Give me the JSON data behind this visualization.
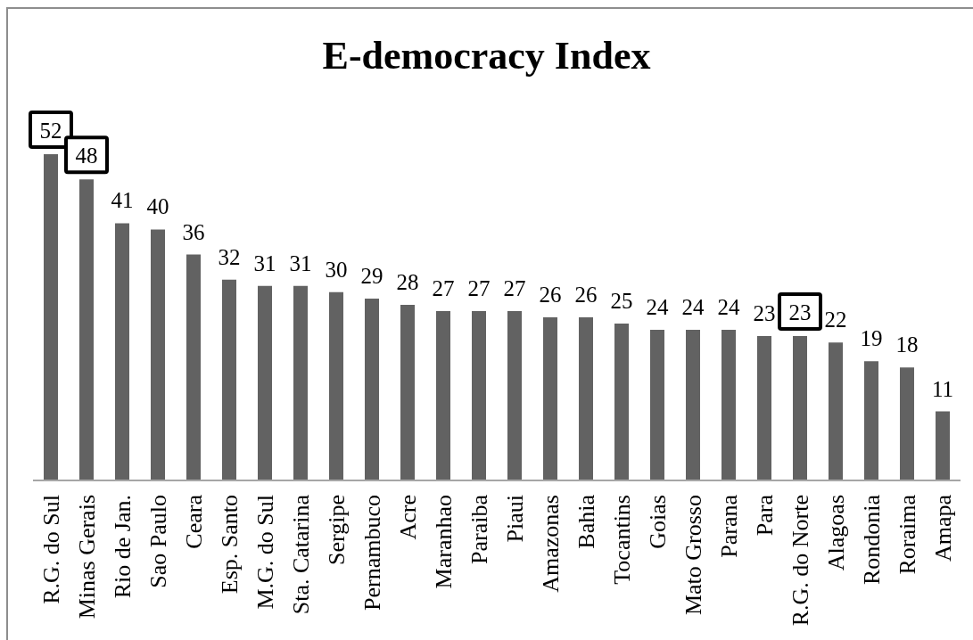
{
  "chart_data": {
    "type": "bar",
    "title": "E-democracy Index",
    "categories": [
      "R.G. do Sul",
      "Minas Gerais",
      "Rio de Jan.",
      "Sao Paulo",
      "Ceara",
      "Esp. Santo",
      "M.G. do Sul",
      "Sta. Catarina",
      "Sergipe",
      "Pernambuco",
      "Acre",
      "Maranhao",
      "Paraiba",
      "Piaui",
      "Amazonas",
      "Bahia",
      "Tocantins",
      "Goias",
      "Mato Grosso",
      "Parana",
      "Para",
      "R.G. do Norte",
      "Alagoas",
      "Rondonia",
      "Roraima",
      "Amapa"
    ],
    "values": [
      52,
      48,
      41,
      40,
      36,
      32,
      31,
      31,
      30,
      29,
      28,
      27,
      27,
      27,
      26,
      26,
      25,
      24,
      24,
      24,
      23,
      23,
      22,
      19,
      18,
      11
    ],
    "value_labels": [
      null,
      null,
      "41",
      "40",
      "36",
      "32",
      "31",
      "31",
      "30",
      "29",
      "28",
      "27",
      "27",
      "27",
      "26",
      "26",
      "25",
      "24",
      "24",
      "24",
      "23",
      null,
      "22",
      "19",
      "18",
      "11"
    ],
    "annotations": [
      {
        "text": "52",
        "x": "R.G. do Sul",
        "y": 52
      },
      {
        "text": "48",
        "x": "Minas Gerais",
        "y": 48
      },
      {
        "text": "23",
        "x": "R.G. do Norte",
        "y": 23
      }
    ],
    "color": "#626262",
    "tick_labels": "x"
  }
}
